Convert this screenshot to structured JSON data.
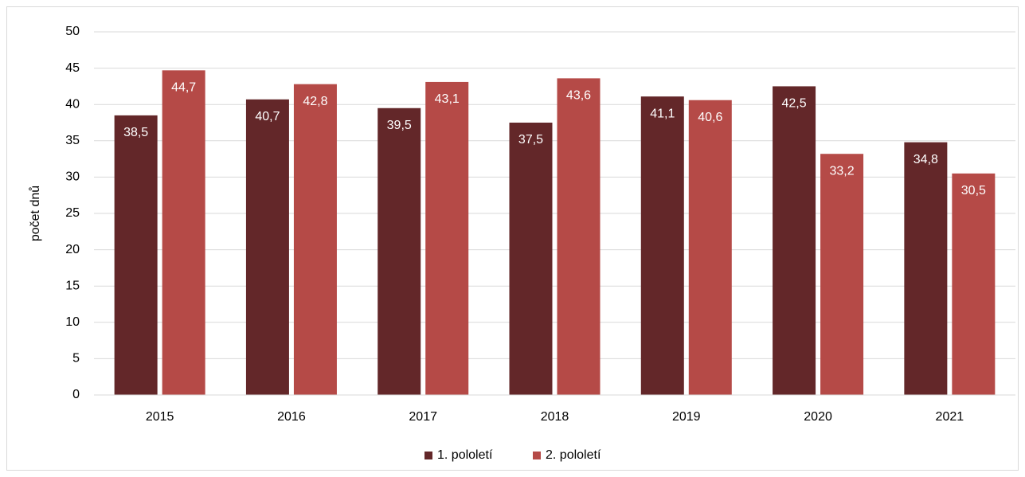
{
  "chart_data": {
    "type": "bar",
    "ylabel": "počet dnů",
    "categories": [
      "2015",
      "2016",
      "2017",
      "2018",
      "2019",
      "2020",
      "2021"
    ],
    "series": [
      {
        "name": "1. pololetí",
        "color": "#632729",
        "values": [
          38.5,
          40.7,
          39.5,
          37.5,
          41.1,
          42.5,
          34.8
        ],
        "value_labels": [
          "38,5",
          "40,7",
          "39,5",
          "37,5",
          "41,1",
          "42,5",
          "34,8"
        ]
      },
      {
        "name": "2. pololetí",
        "color": "#b54a47",
        "values": [
          44.7,
          42.8,
          43.1,
          43.6,
          40.6,
          33.2,
          30.5
        ],
        "value_labels": [
          "44,7",
          "42,8",
          "43,1",
          "43,6",
          "40,6",
          "33,2",
          "30,5"
        ]
      }
    ],
    "ylim": [
      0,
      50
    ],
    "yticks": [
      0,
      5,
      10,
      15,
      20,
      25,
      30,
      35,
      40,
      45,
      50
    ],
    "grid": true,
    "legend": "bottom"
  }
}
